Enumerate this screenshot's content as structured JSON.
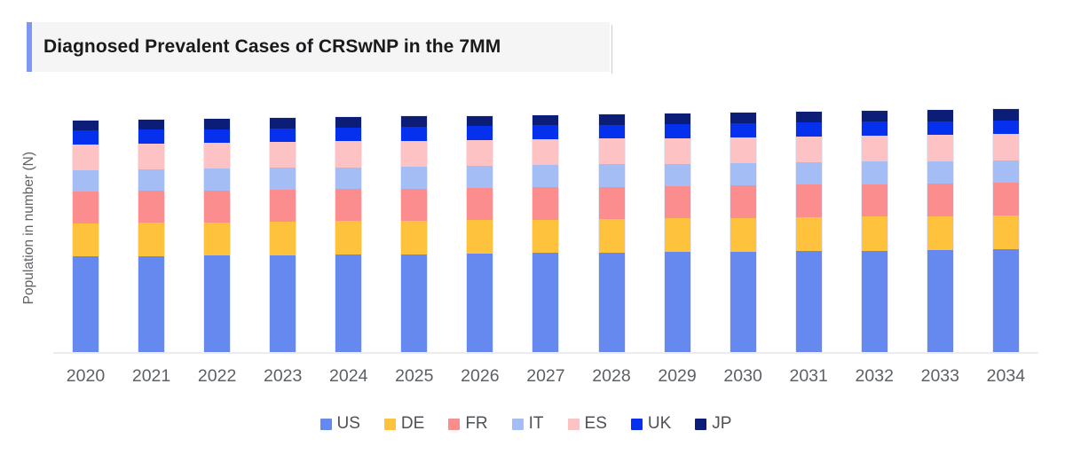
{
  "header": {
    "title": "Diagnosed Prevalent Cases of CRSwNP in the 7MM",
    "accent_color": "#7e97f2",
    "background_color": "#f5f5f6"
  },
  "chart_data": {
    "type": "bar",
    "stacked": true,
    "title": "Diagnosed Prevalent Cases of CRSwNP in the 7MM",
    "xlabel": "",
    "ylabel": "Population in number (N)",
    "y_axis_tick_labels_shown": false,
    "values_unit": "relative units (no numeric y-axis scale is shown in the image)",
    "legend_position": "bottom",
    "grid": false,
    "categories": [
      "2020",
      "2021",
      "2022",
      "2023",
      "2024",
      "2025",
      "2026",
      "2027",
      "2028",
      "2029",
      "2030",
      "2031",
      "2032",
      "2033",
      "2034"
    ],
    "stack_order_bottom_to_top": [
      "US",
      "DE",
      "FR",
      "IT",
      "ES",
      "UK",
      "JP"
    ],
    "series": [
      {
        "name": "US",
        "color": "#6689f0",
        "values": [
          107.6,
          108.2,
          108.7,
          109.3,
          109.9,
          110.5,
          111.0,
          111.6,
          112.2,
          112.7,
          113.3,
          113.9,
          114.5,
          115.0,
          115.6
        ]
      },
      {
        "name": "DE",
        "color": "#fec23d",
        "values": [
          37.4,
          37.5,
          37.5,
          37.6,
          37.7,
          37.8,
          37.8,
          37.9,
          38.0,
          38.0,
          38.1,
          38.2,
          38.2,
          38.3,
          38.4
        ]
      },
      {
        "name": "FR",
        "color": "#fc8d8f",
        "values": [
          36.0,
          36.0,
          36.1,
          36.1,
          36.2,
          36.2,
          36.3,
          36.3,
          36.3,
          36.4,
          36.4,
          36.5,
          36.5,
          36.6,
          36.6
        ]
      },
      {
        "name": "IT",
        "color": "#a4bdf4",
        "values": [
          24.3,
          24.4,
          24.5,
          24.6,
          24.7,
          24.8,
          24.9,
          25.0,
          25.1,
          25.2,
          25.3,
          25.4,
          25.5,
          25.6,
          25.7
        ]
      },
      {
        "name": "ES",
        "color": "#fdc2c4",
        "values": [
          29.0,
          29.0,
          29.0,
          29.1,
          29.1,
          29.1,
          29.1,
          29.1,
          29.2,
          29.2,
          29.2,
          29.2,
          29.3,
          29.3,
          29.3
        ]
      },
      {
        "name": "UK",
        "color": "#0531ee",
        "values": [
          15.7,
          15.7,
          15.7,
          15.7,
          15.7,
          15.7,
          15.7,
          15.7,
          15.7,
          15.7,
          15.7,
          15.7,
          15.7,
          15.7,
          15.7
        ]
      },
      {
        "name": "JP",
        "color": "#0c1d78",
        "values": [
          11.0,
          11.1,
          11.2,
          11.4,
          11.5,
          11.6,
          11.7,
          11.8,
          12.0,
          12.1,
          12.2,
          12.3,
          12.5,
          12.6,
          12.7
        ]
      }
    ]
  }
}
